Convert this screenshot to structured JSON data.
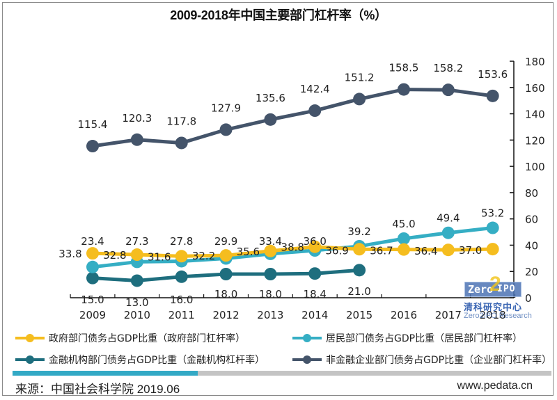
{
  "chart_data": {
    "type": "line",
    "title": "2009-2018年中国主要部门杠杆率（%）",
    "xlabel": "",
    "ylabel": "",
    "categories": [
      "2009",
      "2010",
      "2011",
      "2012",
      "2013",
      "2014",
      "2015",
      "2016",
      "2017",
      "2018"
    ],
    "y_axis": {
      "position": "right",
      "min": 0,
      "max": 180,
      "ticks": [
        "0",
        "20",
        "40",
        "60",
        "80",
        "100",
        "120",
        "140",
        "160",
        "180"
      ]
    },
    "grid": false,
    "legend_position": "bottom",
    "series": [
      {
        "name": "政府部门债务占GDP比重（政府部门杠杆率）",
        "color": "#F5BD1F",
        "values": [
          33.8,
          32.8,
          31.6,
          32.2,
          35.6,
          38.8,
          36.9,
          36.7,
          36.4,
          37.0
        ],
        "labels": [
          "33.8",
          "32.8",
          "31.6",
          "32.2",
          "35.6",
          "38.8",
          "36.9",
          "36.7",
          "36.4",
          "37.0"
        ]
      },
      {
        "name": "居民部门债务占GDP比重（居民部门杠杆率）",
        "color": "#35AEC4",
        "values": [
          23.4,
          27.3,
          27.8,
          29.9,
          33.4,
          36.0,
          39.2,
          45.0,
          49.4,
          53.2
        ],
        "labels": [
          "23.4",
          "27.3",
          "27.8",
          "29.9",
          "33.4",
          "36.0",
          "39.2",
          "45.0",
          "49.4",
          "53.2"
        ]
      },
      {
        "name": "金融机构部门债务占GDP比重（金融机构杠杆率）",
        "color": "#1E6E7E",
        "values": [
          15.0,
          13.0,
          16.0,
          18.0,
          18.0,
          18.4,
          21.0,
          null,
          null,
          null
        ],
        "labels": [
          "15.0",
          "13.0",
          "16.0",
          "18.0",
          "18.0",
          "18.4",
          "21.0",
          null,
          null,
          null
        ]
      },
      {
        "name": "非金融企业部门债务占GDP比重（企业部门杠杆率）",
        "color": "#44546A",
        "values": [
          115.4,
          120.3,
          117.8,
          127.9,
          135.6,
          142.4,
          151.2,
          158.5,
          158.2,
          153.6
        ],
        "labels": [
          "115.4",
          "120.3",
          "117.8",
          "127.9",
          "135.6",
          "142.4",
          "151.2",
          "158.5",
          "158.2",
          "153.6"
        ]
      }
    ]
  },
  "legend": [
    {
      "label": "政府部门债务占GDP比重（政府部门杠杆率）",
      "color": "#F5BD1F"
    },
    {
      "label": "居民部门债务占GDP比重（居民部门杠杆率）",
      "color": "#35AEC4"
    },
    {
      "label": "金融机构部门债务占GDP比重（金融机构杠杆率）",
      "color": "#1E6E7E"
    },
    {
      "label": "非金融企业部门债务占GDP比重（企业部门杠杆率）",
      "color": "#44546A"
    }
  ],
  "watermark": {
    "logo_left": "Zero",
    "logo_mid": "2",
    "logo_right": "IPO",
    "cn": "清科研究中心",
    "en": "Zero2IPO Research"
  },
  "footer": {
    "source": "来源：中国社会科学院 2019.06",
    "website": "www.pedata.cn"
  }
}
